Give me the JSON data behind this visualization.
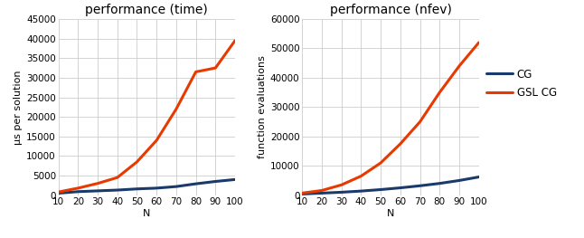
{
  "x": [
    10,
    20,
    30,
    40,
    50,
    60,
    70,
    80,
    90,
    100
  ],
  "time_cg": [
    500,
    900,
    1100,
    1300,
    1600,
    1800,
    2200,
    2900,
    3500,
    4000
  ],
  "time_gslcg": [
    800,
    1800,
    3000,
    4500,
    8500,
    14000,
    22000,
    31500,
    32500,
    39500
  ],
  "nfev_cg": [
    400,
    700,
    1000,
    1400,
    1900,
    2500,
    3200,
    4000,
    5000,
    6200
  ],
  "nfev_gslcg": [
    700,
    1600,
    3500,
    6500,
    11000,
    17500,
    25000,
    35000,
    44000,
    52000
  ],
  "title_time": "performance (time)",
  "title_nfev": "performance (nfev)",
  "ylabel_time": "μs per solution",
  "ylabel_nfev": "function evaluations",
  "xlabel": "N",
  "ylim_time": [
    0,
    45000
  ],
  "ylim_nfev": [
    0,
    60000
  ],
  "yticks_time": [
    0,
    5000,
    10000,
    15000,
    20000,
    25000,
    30000,
    35000,
    40000,
    45000
  ],
  "yticks_nfev": [
    0,
    10000,
    20000,
    30000,
    40000,
    50000,
    60000
  ],
  "color_cg": "#1a3a6b",
  "color_gslcg": "#e83a00",
  "legend_labels": [
    "CG",
    "GSL CG"
  ],
  "bg_color": "#ffffff",
  "grid_color": "#cccccc",
  "fig_width": 6.46,
  "fig_height": 2.63,
  "title_fontsize": 10,
  "label_fontsize": 8,
  "tick_fontsize": 7.5,
  "legend_fontsize": 8.5,
  "linewidth": 2.2
}
